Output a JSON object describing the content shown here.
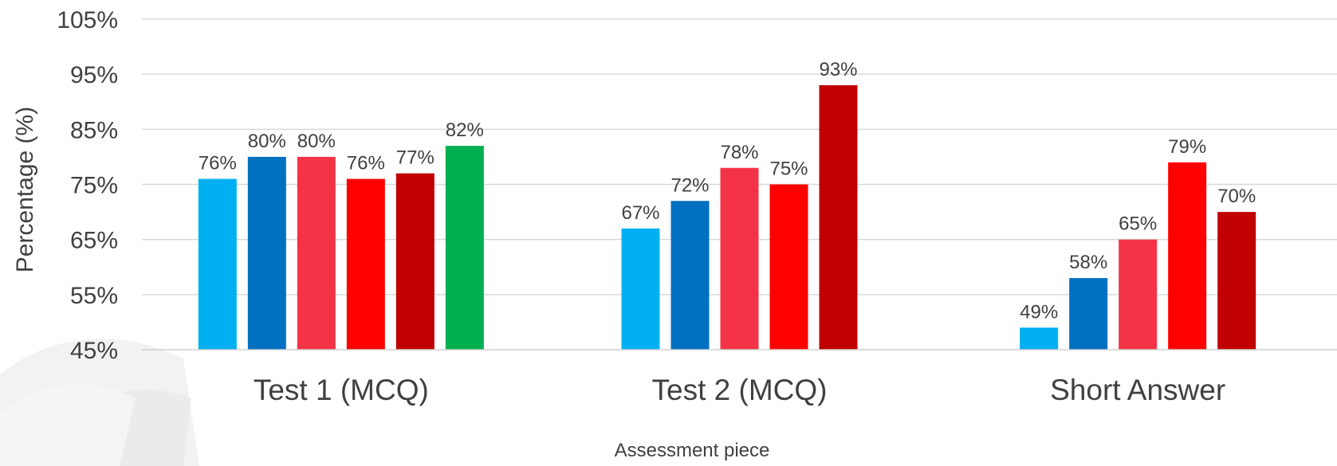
{
  "chart_data": {
    "type": "bar",
    "title": "",
    "xlabel": "Assessment piece",
    "ylabel": "Percentage (%)",
    "ylim": [
      45,
      105
    ],
    "yticks": [
      45,
      55,
      65,
      75,
      85,
      95,
      105
    ],
    "ytick_labels": [
      "45%",
      "55%",
      "65%",
      "75%",
      "85%",
      "95%",
      "105%"
    ],
    "grid": true,
    "legend": "none",
    "groups": [
      {
        "category": "Test 1 (MCQ)",
        "bars": [
          {
            "value": 76,
            "label": "76%",
            "color": "#00B0F0"
          },
          {
            "value": 80,
            "label": "80%",
            "color": "#0070C0"
          },
          {
            "value": 80,
            "label": "80%",
            "color": "#F43347"
          },
          {
            "value": 76,
            "label": "76%",
            "color": "#FF0000"
          },
          {
            "value": 77,
            "label": "77%",
            "color": "#C00000"
          },
          {
            "value": 82,
            "label": "82%",
            "color": "#00B050"
          }
        ]
      },
      {
        "category": "Test 2 (MCQ)",
        "bars": [
          {
            "value": 67,
            "label": "67%",
            "color": "#00B0F0"
          },
          {
            "value": 72,
            "label": "72%",
            "color": "#0070C0"
          },
          {
            "value": 78,
            "label": "78%",
            "color": "#F43347"
          },
          {
            "value": 75,
            "label": "75%",
            "color": "#FF0000"
          },
          {
            "value": 93,
            "label": "93%",
            "color": "#C00000"
          }
        ]
      },
      {
        "category": "Short Answer",
        "bars": [
          {
            "value": 49,
            "label": "49%",
            "color": "#00B0F0"
          },
          {
            "value": 58,
            "label": "58%",
            "color": "#0070C0"
          },
          {
            "value": 65,
            "label": "65%",
            "color": "#F43347"
          },
          {
            "value": 79,
            "label": "79%",
            "color": "#FF0000"
          },
          {
            "value": 70,
            "label": "70%",
            "color": "#C00000"
          }
        ]
      }
    ]
  }
}
